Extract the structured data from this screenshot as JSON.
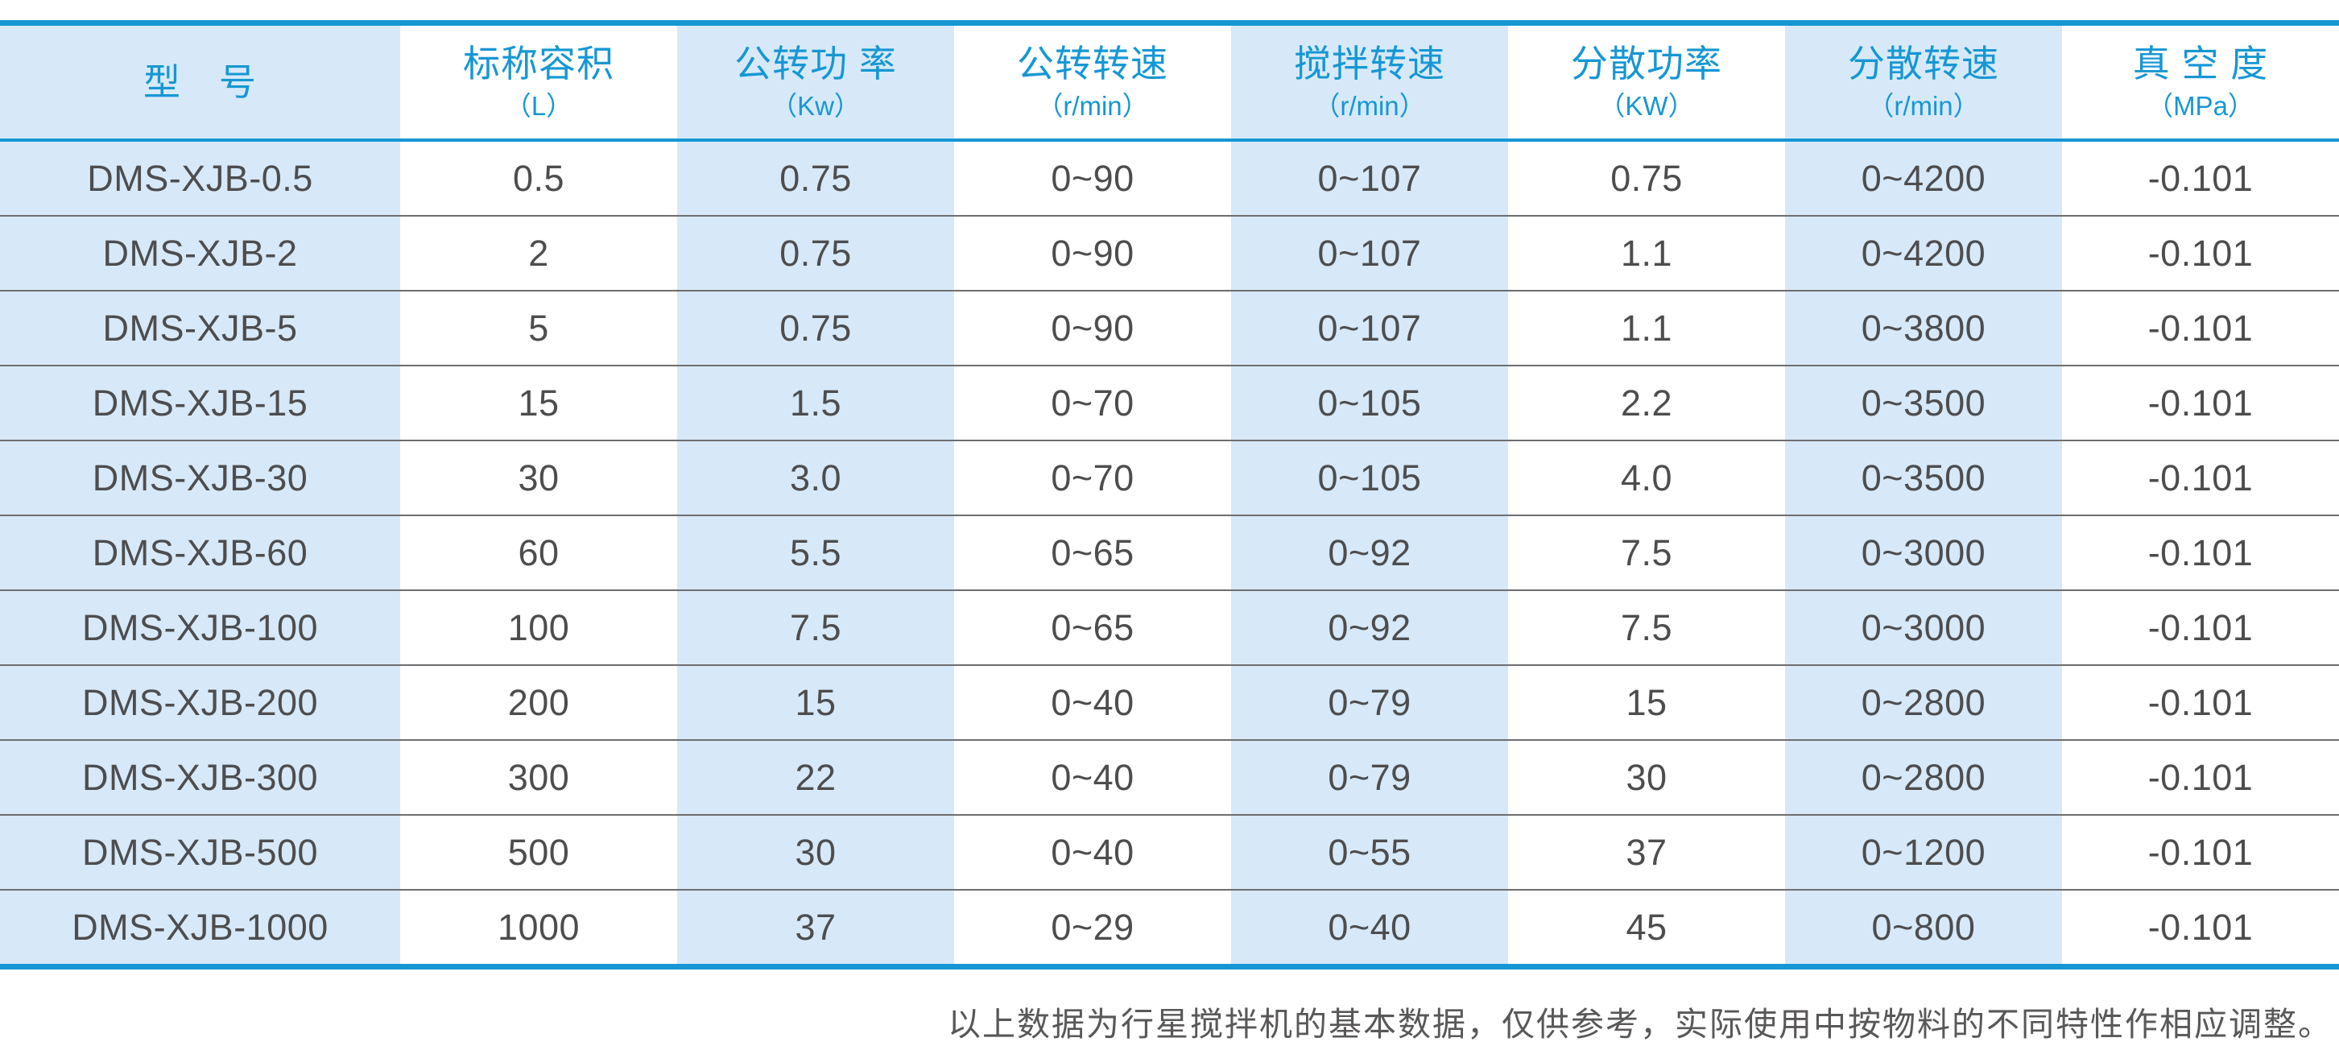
{
  "colors": {
    "accent": "#1697d4",
    "column_band": "#d7e9f8",
    "body_text": "#4d4d4f",
    "row_rule": "#6e6e70",
    "footnote_text": "#595757"
  },
  "table": {
    "columns": [
      {
        "label": "型　号",
        "unit": ""
      },
      {
        "label": "标称容积",
        "unit": "（L）"
      },
      {
        "label": "公转功 率",
        "unit": "（Kw）"
      },
      {
        "label": "公转转速",
        "unit": "（r/min）"
      },
      {
        "label": "搅拌转速",
        "unit": "（r/min）"
      },
      {
        "label": "分散功率",
        "unit": "（KW）"
      },
      {
        "label": "分散转速",
        "unit": "（r/min）"
      },
      {
        "label": "真 空 度",
        "unit": "（MPa）"
      }
    ],
    "rows": [
      [
        "DMS-XJB-0.5",
        "0.5",
        "0.75",
        "0~90",
        "0~107",
        "0.75",
        "0~4200",
        "-0.101"
      ],
      [
        "DMS-XJB-2",
        "2",
        "0.75",
        "0~90",
        "0~107",
        "1.1",
        "0~4200",
        "-0.101"
      ],
      [
        "DMS-XJB-5",
        "5",
        "0.75",
        "0~90",
        "0~107",
        "1.1",
        "0~3800",
        "-0.101"
      ],
      [
        "DMS-XJB-15",
        "15",
        "1.5",
        "0~70",
        "0~105",
        "2.2",
        "0~3500",
        "-0.101"
      ],
      [
        "DMS-XJB-30",
        "30",
        "3.0",
        "0~70",
        "0~105",
        "4.0",
        "0~3500",
        "-0.101"
      ],
      [
        "DMS-XJB-60",
        "60",
        "5.5",
        "0~65",
        "0~92",
        "7.5",
        "0~3000",
        "-0.101"
      ],
      [
        "DMS-XJB-100",
        "100",
        "7.5",
        "0~65",
        "0~92",
        "7.5",
        "0~3000",
        "-0.101"
      ],
      [
        "DMS-XJB-200",
        "200",
        "15",
        "0~40",
        "0~79",
        "15",
        "0~2800",
        "-0.101"
      ],
      [
        "DMS-XJB-300",
        "300",
        "22",
        "0~40",
        "0~79",
        "30",
        "0~2800",
        "-0.101"
      ],
      [
        "DMS-XJB-500",
        "500",
        "30",
        "0~40",
        "0~55",
        "37",
        "0~1200",
        "-0.101"
      ],
      [
        "DMS-XJB-1000",
        "1000",
        "37",
        "0~29",
        "0~40",
        "45",
        "0~800",
        "-0.101"
      ]
    ]
  },
  "chart_data": {
    "type": "table",
    "columns": [
      "型　号",
      "标称容积（L）",
      "公转功 率（Kw）",
      "公转转速（r/min）",
      "搅拌转速（r/min）",
      "分散功率（KW）",
      "分散转速（r/min）",
      "真 空 度（MPa）"
    ],
    "rows": [
      [
        "DMS-XJB-0.5",
        "0.5",
        "0.75",
        "0~90",
        "0~107",
        "0.75",
        "0~4200",
        "-0.101"
      ],
      [
        "DMS-XJB-2",
        "2",
        "0.75",
        "0~90",
        "0~107",
        "1.1",
        "0~4200",
        "-0.101"
      ],
      [
        "DMS-XJB-5",
        "5",
        "0.75",
        "0~90",
        "0~107",
        "1.1",
        "0~3800",
        "-0.101"
      ],
      [
        "DMS-XJB-15",
        "15",
        "1.5",
        "0~70",
        "0~105",
        "2.2",
        "0~3500",
        "-0.101"
      ],
      [
        "DMS-XJB-30",
        "30",
        "3.0",
        "0~70",
        "0~105",
        "4.0",
        "0~3500",
        "-0.101"
      ],
      [
        "DMS-XJB-60",
        "60",
        "5.5",
        "0~65",
        "0~92",
        "7.5",
        "0~3000",
        "-0.101"
      ],
      [
        "DMS-XJB-100",
        "100",
        "7.5",
        "0~65",
        "0~92",
        "7.5",
        "0~3000",
        "-0.101"
      ],
      [
        "DMS-XJB-200",
        "200",
        "15",
        "0~40",
        "0~79",
        "15",
        "0~2800",
        "-0.101"
      ],
      [
        "DMS-XJB-300",
        "300",
        "22",
        "0~40",
        "0~79",
        "30",
        "0~2800",
        "-0.101"
      ],
      [
        "DMS-XJB-500",
        "500",
        "30",
        "0~40",
        "0~55",
        "37",
        "0~1200",
        "-0.101"
      ],
      [
        "DMS-XJB-1000",
        "1000",
        "37",
        "0~29",
        "0~40",
        "45",
        "0~800",
        "-0.101"
      ]
    ]
  },
  "footnote": "以上数据为行星搅拌机的基本数据，仅供参考，实际使用中按物料的不同特性作相应调整。"
}
